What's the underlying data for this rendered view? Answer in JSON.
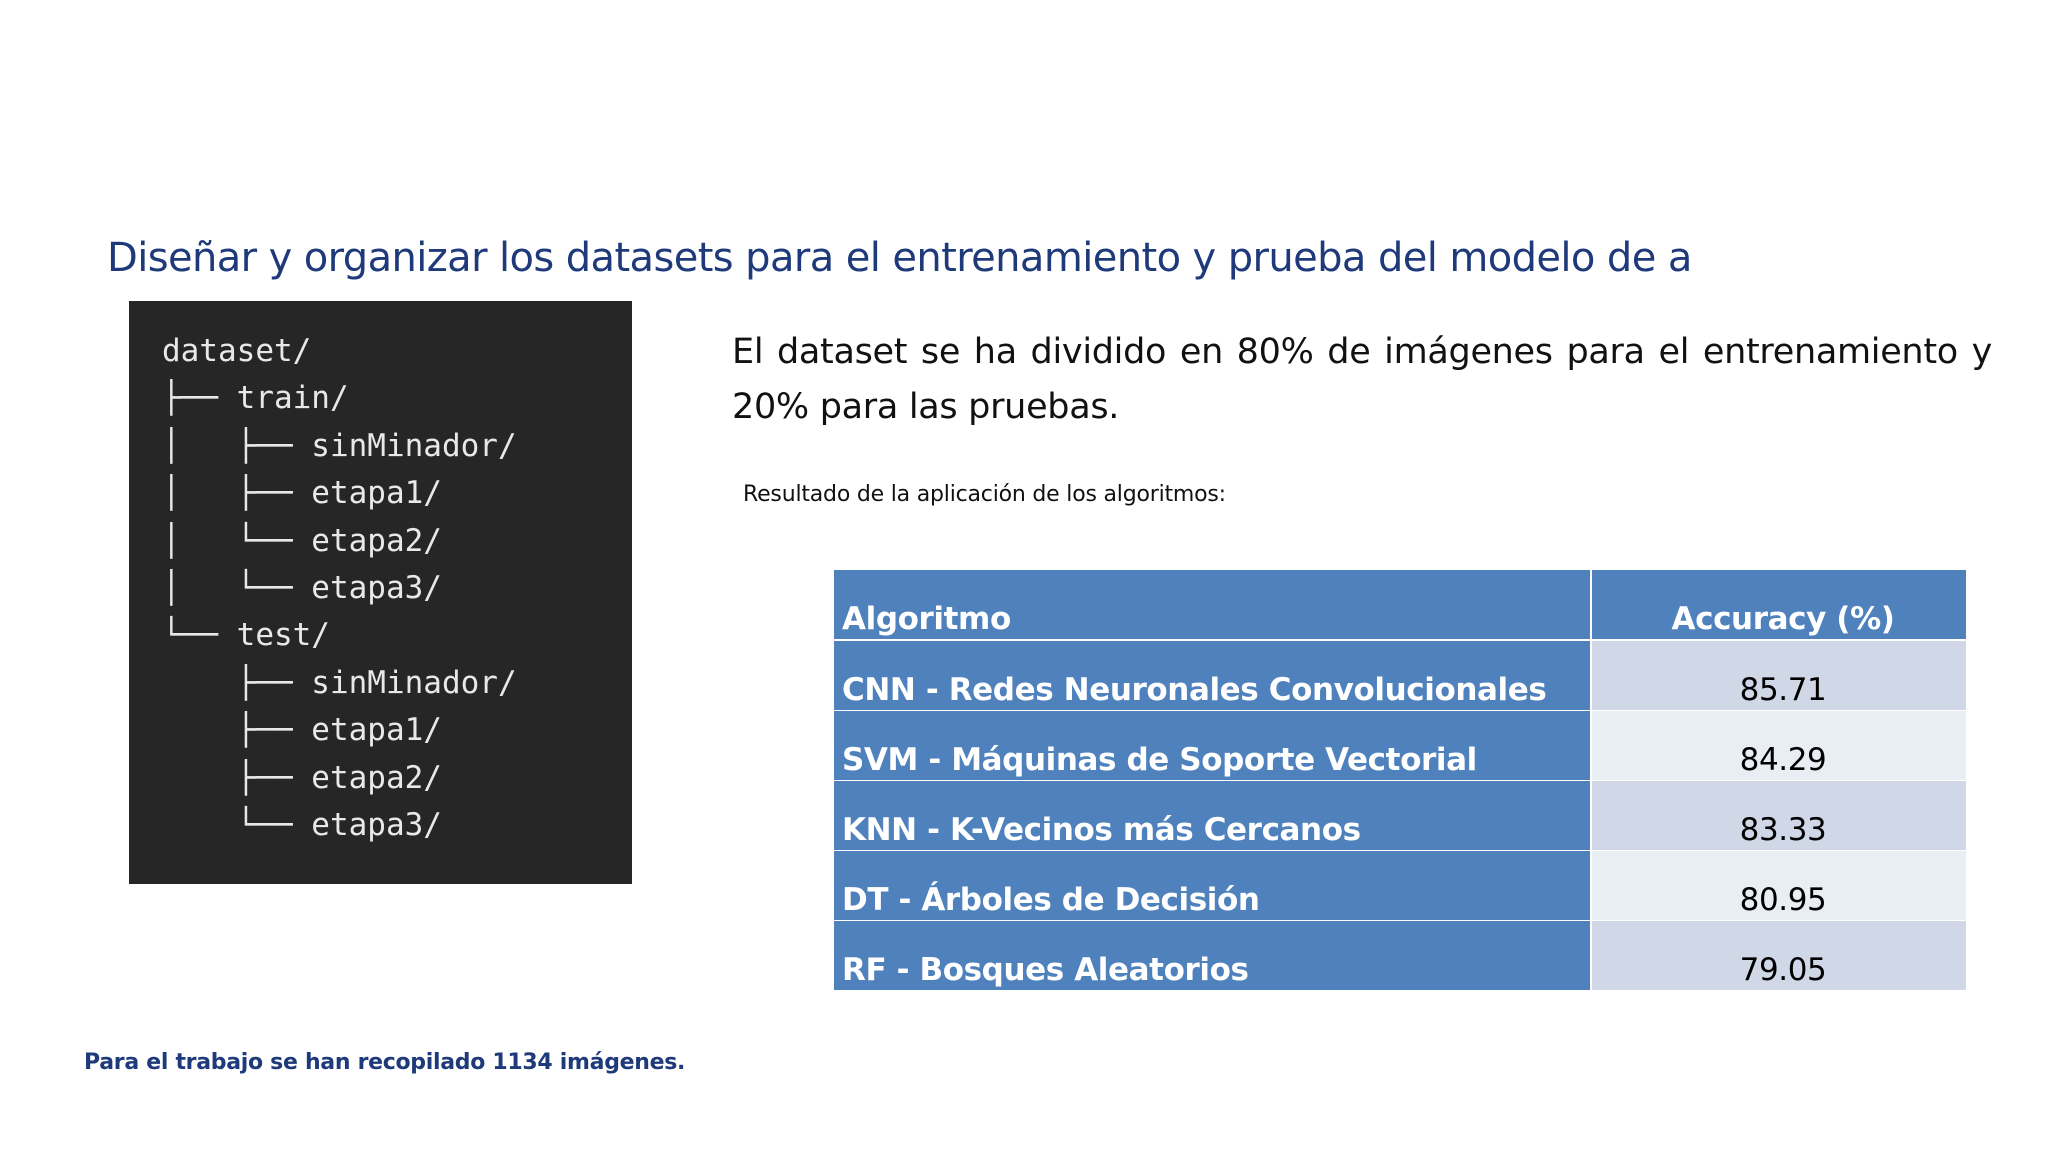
{
  "slide": {
    "title": "Diseñar y organizar los datasets para el entrenamiento y prueba del modelo de a",
    "description": "El dataset se ha dividido en 80% de imágenes para el entrenamiento y 20% para las pruebas.",
    "results_caption": "Resultado de la aplicación de los algoritmos:",
    "footer_note": "Para el trabajo se han recopilado 1134 imágenes."
  },
  "tree": {
    "lines": [
      "dataset/",
      "├── train/",
      "│   ├── sinMinador/",
      "│   ├── etapa1/",
      "│   └── etapa2/",
      "│   └── etapa3/",
      "└── test/",
      "    ├── sinMinador/",
      "    ├── etapa1/",
      "    ├── etapa2/",
      "    └── etapa3/"
    ]
  },
  "table": {
    "headers": [
      "Algoritmo",
      "Accuracy (%)"
    ],
    "rows": [
      {
        "algorithm": "CNN - Redes Neuronales Convolucionales",
        "accuracy": "85.71"
      },
      {
        "algorithm": "SVM - Máquinas de Soporte Vectorial",
        "accuracy": "84.29"
      },
      {
        "algorithm": "KNN - K-Vecinos más Cercanos",
        "accuracy": "83.33"
      },
      {
        "algorithm": "DT - Árboles de Decisión",
        "accuracy": "80.95"
      },
      {
        "algorithm": "RF - Bosques Aleatorios",
        "accuracy": "79.05"
      }
    ]
  },
  "colors": {
    "title": "#1f3a7a",
    "table_header": "#4f81bd",
    "table_band_odd": "#d0d8e8",
    "table_band_even": "#e9edf4",
    "tree_background": "#262626"
  }
}
